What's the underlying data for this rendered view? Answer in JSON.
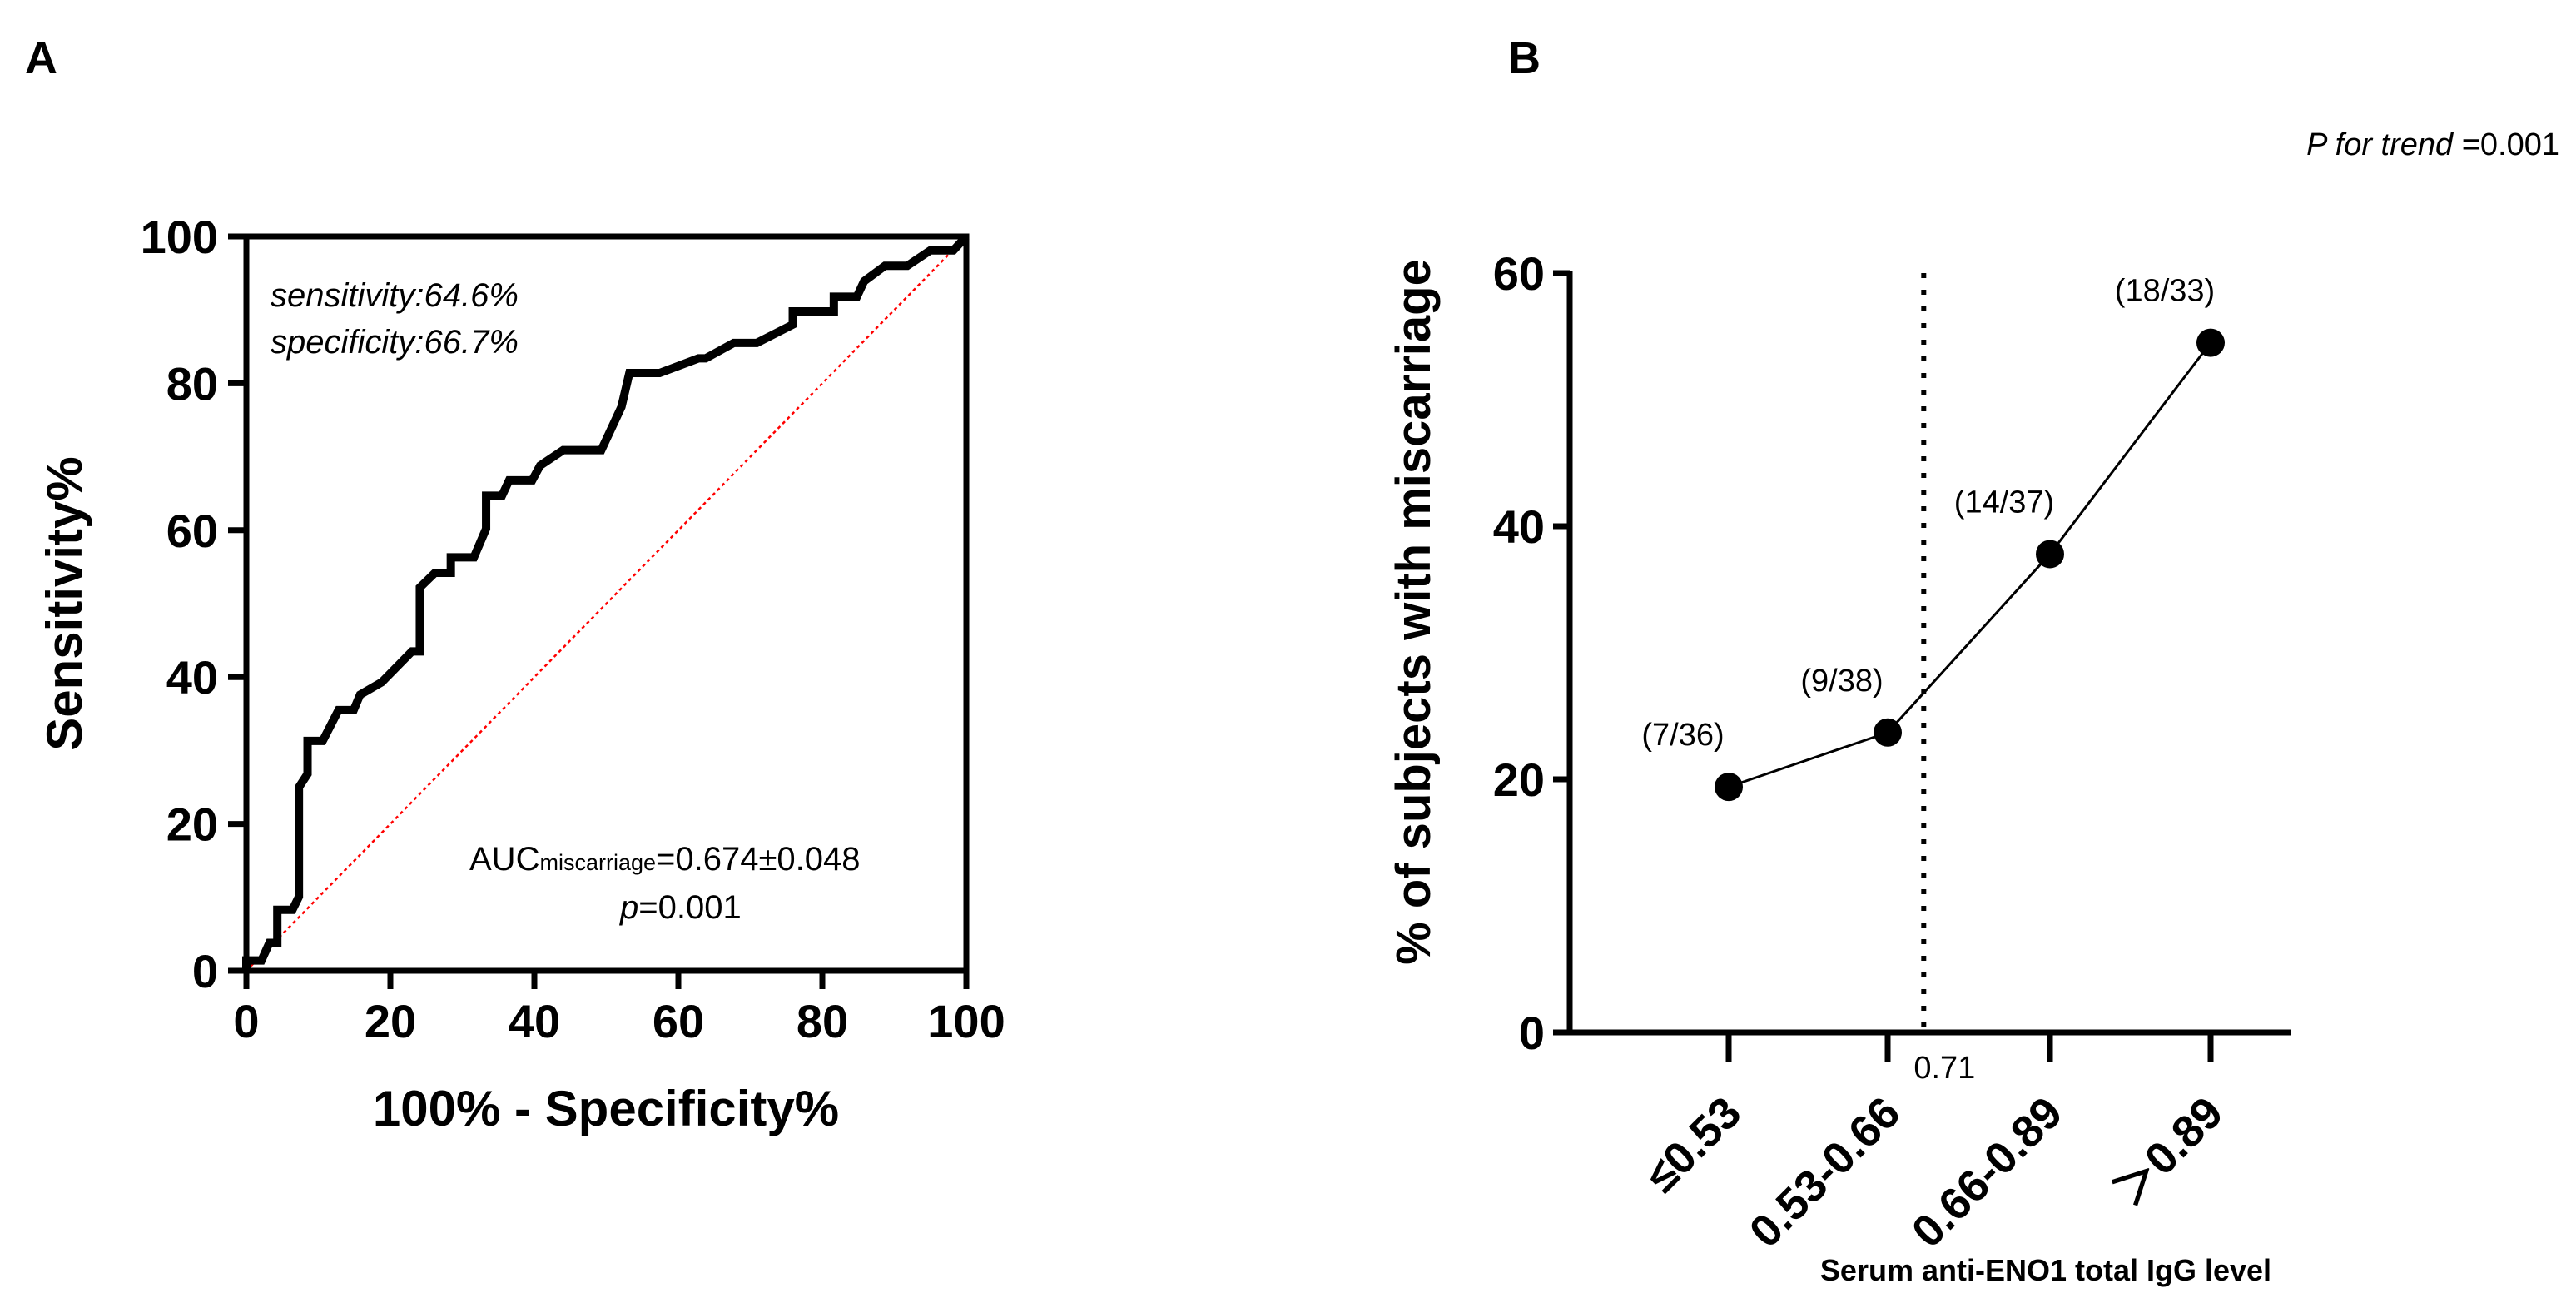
{
  "panels": {
    "a": "A",
    "b": "B"
  },
  "chart_data": [
    {
      "type": "line",
      "subtype": "roc",
      "panel": "A",
      "xlabel": "100% - Specificity%",
      "ylabel": "Sensitivity%",
      "xlim": [
        0,
        100
      ],
      "ylim": [
        0,
        100
      ],
      "xticks": [
        0,
        20,
        40,
        60,
        80,
        100
      ],
      "yticks": [
        0,
        20,
        40,
        60,
        80,
        100
      ],
      "annotations": {
        "sensitivity": "sensitivity:64.6%",
        "specificity": "specificity:66.7%",
        "auc_prefix": "AUC",
        "auc_sub": "miscarriage",
        "auc_value": "=0.674±0.048",
        "p_label": "p",
        "p_value": "=0.001"
      },
      "reference_line": {
        "from": [
          0,
          0
        ],
        "to": [
          100,
          100
        ],
        "color": "#ff0000",
        "style": "dotted"
      },
      "series": [
        {
          "name": "ROC",
          "color": "#000000",
          "x": [
            0,
            0,
            2.1,
            3.2,
            4.3,
            4.3,
            6.4,
            7.3,
            7.3,
            8.5,
            8.5,
            10.6,
            12.8,
            14.9,
            15.8,
            18.8,
            23.0,
            24.1,
            24.1,
            26.2,
            28.4,
            28.4,
            31.6,
            33.3,
            33.3,
            35.5,
            36.5,
            39.7,
            40.8,
            44.0,
            49.3,
            52.1,
            53.2,
            57.4,
            62.8,
            63.8,
            67.7,
            70.9,
            75.9,
            75.9,
            81.6,
            81.6,
            84.8,
            85.8,
            88.7,
            91.8,
            95.0,
            98.2,
            100
          ],
          "y": [
            0,
            1.4,
            1.4,
            3.8,
            3.8,
            8.3,
            8.3,
            10.1,
            25.0,
            26.8,
            31.3,
            31.3,
            35.5,
            35.5,
            37.6,
            39.3,
            43.5,
            43.5,
            52.2,
            54.2,
            54.2,
            56.3,
            56.3,
            60.2,
            64.7,
            64.7,
            66.8,
            66.8,
            68.8,
            70.9,
            70.9,
            76.8,
            81.4,
            81.4,
            83.4,
            83.4,
            85.5,
            85.5,
            88.0,
            89.8,
            89.8,
            91.8,
            91.8,
            93.9,
            96.0,
            96.0,
            98.1,
            98.1,
            100
          ]
        }
      ]
    },
    {
      "type": "line",
      "panel": "B",
      "title_note": "P for trend =0.001",
      "title_note_italic": "P for trend",
      "title_note_value": " =0.001",
      "xlabel": "Serum anti-ENO1 total IgG level",
      "ylabel": "% of subjects with miscarriage",
      "categories": [
        "≤0.53",
        "0.53-0.66",
        "0.66-0.89",
        "＞0.89"
      ],
      "ylim": [
        0,
        60
      ],
      "yticks": [
        0,
        20,
        40,
        60
      ],
      "values": [
        19.4,
        23.7,
        37.8,
        54.5
      ],
      "data_labels": [
        "(7/36)",
        "(9/38)",
        "(14/37)",
        "(18/33)"
      ],
      "cutoff": {
        "value": 0.71,
        "label": "0.71",
        "style": "dotted"
      },
      "color": "#000000"
    }
  ]
}
